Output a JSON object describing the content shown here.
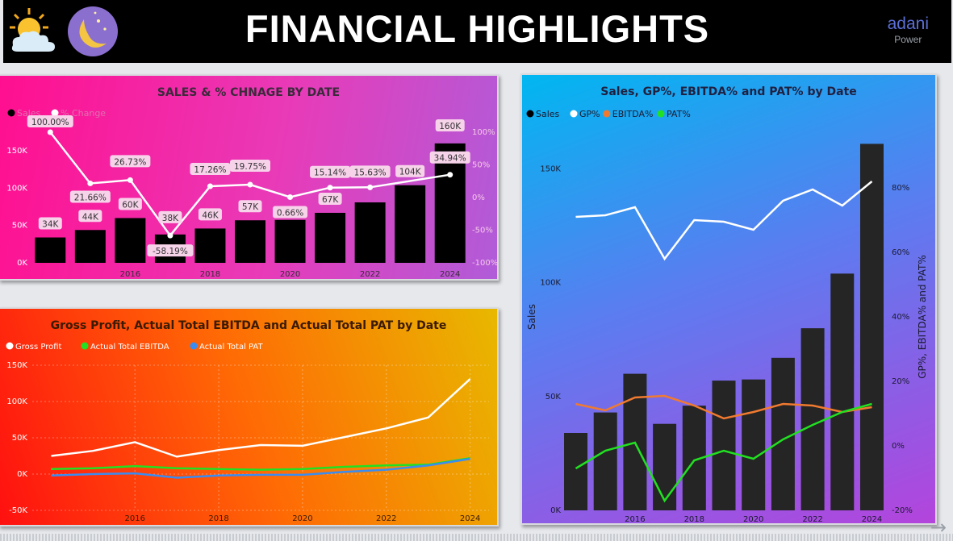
{
  "header": {
    "title": "FINANCIAL HIGHLIGHTS",
    "brand": "adani",
    "brand_sub": "Power"
  },
  "icons": {
    "theme_day": "sun-cloud-icon",
    "theme_night": "moon-stars-icon",
    "nav": "arrow-right-icon"
  },
  "nav_arrow": "→",
  "colors": {
    "sales": "#000000",
    "gp": "#ffffff",
    "ebitda": "#f07a30",
    "pat": "#22e022",
    "chart1_pct": "#ffffff",
    "chart2_gp": "#ffffff",
    "chart2_ebitda": "#22e022",
    "chart2_pat": "#3a8cf0"
  },
  "chart_data": [
    {
      "type": "bar",
      "title": "SALES & % CHNAGE BY DATE",
      "legend_placement": "top-left",
      "legend": [
        "Sales",
        "% Change"
      ],
      "x": [
        2014,
        2015,
        2016,
        2017,
        2018,
        2019,
        2020,
        2021,
        2022,
        2023,
        2024
      ],
      "x_ticks": [
        "2016",
        "2018",
        "2020",
        "2022",
        "2024"
      ],
      "series": [
        {
          "name": "Sales",
          "values": [
            34,
            44,
            60,
            38,
            46,
            57,
            57.5,
            67,
            81,
            104,
            160
          ],
          "labels": [
            "34K",
            "44K",
            "60K",
            "38K",
            "46K",
            "57K",
            "",
            "67K",
            "",
            "104K",
            "160K"
          ]
        },
        {
          "name": "% Change",
          "type": "line",
          "values": [
            100.0,
            21.66,
            26.73,
            -58.19,
            17.26,
            19.75,
            0.66,
            15.14,
            15.63,
            null,
            34.94
          ],
          "labels": [
            "100.00%",
            "21.66%",
            "26.73%",
            "-58.19%",
            "17.26%",
            "19.75%",
            "0.66%",
            "15.14%",
            "15.63%",
            "",
            "34.94%"
          ]
        }
      ],
      "y_left": {
        "range": [
          0,
          175
        ],
        "ticks": [
          {
            "v": 0,
            "t": "0K"
          },
          {
            "v": 50,
            "t": "50K"
          },
          {
            "v": 100,
            "t": "100K"
          },
          {
            "v": 150,
            "t": "150K"
          }
        ]
      },
      "y_right": {
        "range": [
          -100,
          100
        ],
        "ticks": [
          {
            "v": 100,
            "t": "100%"
          },
          {
            "v": 50,
            "t": "50%"
          },
          {
            "v": 0,
            "t": "0%"
          },
          {
            "v": -50,
            "t": "-50%"
          },
          {
            "v": -100,
            "t": "-100%"
          }
        ]
      }
    },
    {
      "type": "line",
      "title": "Gross Profit, Actual Total EBITDA and Actual Total PAT by Date",
      "legend_placement": "top-left",
      "x": [
        2014,
        2015,
        2016,
        2017,
        2018,
        2019,
        2020,
        2021,
        2022,
        2023,
        2024
      ],
      "x_ticks": [
        "2016",
        "2018",
        "2020",
        "2022",
        "2024"
      ],
      "series": [
        {
          "name": "Gross Profit",
          "values": [
            25,
            32,
            44,
            24,
            33,
            40,
            39,
            51,
            63,
            78,
            131
          ]
        },
        {
          "name": "Actual Total EBITDA",
          "values": [
            7,
            8,
            11,
            8,
            7,
            6,
            7,
            10,
            12,
            13,
            22
          ]
        },
        {
          "name": "Actual Total PAT",
          "values": [
            -2,
            0,
            1,
            -5,
            -2,
            -1,
            -1,
            3,
            6,
            12,
            21
          ]
        }
      ],
      "y": {
        "range": [
          -50,
          150
        ],
        "ticks": [
          {
            "v": 150,
            "t": "150K"
          },
          {
            "v": 100,
            "t": "100K"
          },
          {
            "v": 50,
            "t": "50K"
          },
          {
            "v": 0,
            "t": "0K"
          },
          {
            "v": -50,
            "t": "-50K"
          }
        ]
      },
      "grid": true
    },
    {
      "type": "bar",
      "title": "Sales, GP%, EBITDA% and PAT% by Date",
      "legend_placement": "top-left",
      "ylabel": "Sales",
      "y2label": "GP%, EBITDA% and PAT%",
      "x": [
        2014,
        2015,
        2016,
        2017,
        2018,
        2019,
        2020,
        2021,
        2022,
        2023,
        2024
      ],
      "x_ticks": [
        "2016",
        "2018",
        "2020",
        "2022",
        "2024"
      ],
      "series": [
        {
          "name": "Sales",
          "values": [
            34,
            43,
            60,
            38,
            46,
            57,
            57.5,
            67,
            80,
            104,
            161
          ]
        },
        {
          "name": "GP%",
          "type": "line",
          "values": [
            71,
            71.5,
            74,
            58,
            70,
            69.5,
            67,
            76,
            79.5,
            74.5,
            82
          ]
        },
        {
          "name": "EBITDA%",
          "type": "line",
          "values": [
            13,
            11,
            15,
            15.5,
            12.5,
            8.5,
            10.5,
            13,
            12.5,
            10.5,
            12
          ]
        },
        {
          "name": "PAT%",
          "type": "line",
          "values": [
            -7,
            -1.5,
            1,
            -17,
            -4.5,
            -1.5,
            -4,
            2,
            6.5,
            10.5,
            13
          ]
        }
      ],
      "y_left": {
        "range": [
          0,
          170
        ],
        "ticks": [
          {
            "v": 0,
            "t": "0K"
          },
          {
            "v": 50,
            "t": "50K"
          },
          {
            "v": 100,
            "t": "100K"
          },
          {
            "v": 150,
            "t": "150K"
          }
        ]
      },
      "y_right": {
        "range": [
          -20,
          100
        ],
        "ticks": [
          {
            "v": 80,
            "t": "80%"
          },
          {
            "v": 60,
            "t": "60%"
          },
          {
            "v": 40,
            "t": "40%"
          },
          {
            "v": 20,
            "t": "20%"
          },
          {
            "v": 0,
            "t": "0%"
          },
          {
            "v": -20,
            "t": "-20%"
          }
        ]
      }
    }
  ]
}
